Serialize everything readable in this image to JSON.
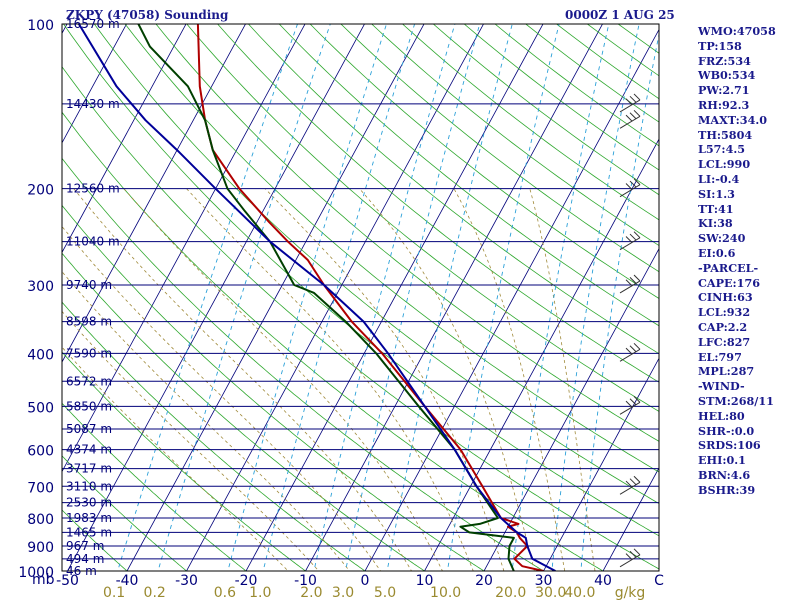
{
  "title_left": "ZKPY (47058) Sounding",
  "title_right": "0000Z  1 AUG 25",
  "stats": [
    "WMO:47058",
    "TP:158",
    "FRZ:534",
    "WB0:534",
    "PW:2.71",
    "RH:92.3",
    "MAXT:34.0",
    "TH:5804",
    "L57:4.5",
    "LCL:990",
    "LI:-0.4",
    "SI:1.3",
    "TT:41",
    "KI:38",
    "SW:240",
    "EI:0.6",
    "-PARCEL-",
    "CAPE:176",
    "CINH:63",
    "LCL:932",
    "CAP:2.2",
    "LFC:827",
    "EL:797",
    "MPL:287",
    "-WIND-",
    "STM:268/11",
    "HEL:80",
    "SHR-:0.0",
    "SRDS:106",
    "EHI:0.1",
    "BRN:4.6",
    "BSHR:39"
  ],
  "chart_data": {
    "type": "line",
    "diagram": "skew-T log-P",
    "y_axis": {
      "label": "mb",
      "scale": "log",
      "range": [
        1000,
        100
      ],
      "ticks": [
        "100",
        "200",
        "300",
        "400",
        "500",
        "600",
        "700",
        "800",
        "900",
        "1000"
      ]
    },
    "x_axis": {
      "label": "C",
      "range": [
        -50,
        50
      ],
      "ticks": [
        "-50",
        "-40",
        "-30",
        "-20",
        "-10",
        "0",
        "10",
        "20",
        "30",
        "40"
      ]
    },
    "mixing_ratio_axis": {
      "label": "g/kg",
      "ticks": [
        "0.1",
        "0.2",
        "0.6",
        "1.0",
        "2.0",
        "3.0",
        "5.0",
        "10.0",
        "20.0",
        "30.0",
        "40.0"
      ]
    },
    "height_labels": [
      "16570 m",
      "14430 m",
      "12560 m",
      "11040 m",
      "9740 m",
      "8598 m",
      "7590 m",
      "6572 m",
      "5850 m",
      "5087 m",
      "4374 m",
      "3717 m",
      "3110 m",
      "2530 m",
      "1983 m",
      "1465 m",
      "967 m",
      "494 m",
      "46 m"
    ],
    "series": [
      {
        "name": "temperature",
        "color": "#b00000",
        "points": [
          [
            1000,
            30
          ],
          [
            980,
            26
          ],
          [
            950,
            24
          ],
          [
            900,
            25
          ],
          [
            870,
            23
          ],
          [
            850,
            22
          ],
          [
            830,
            20
          ],
          [
            820,
            21.5
          ],
          [
            800,
            18
          ],
          [
            700,
            12
          ],
          [
            600,
            5
          ],
          [
            500,
            -5
          ],
          [
            400,
            -17
          ],
          [
            350,
            -25
          ],
          [
            300,
            -33
          ],
          [
            270,
            -38
          ],
          [
            250,
            -43
          ],
          [
            230,
            -48
          ],
          [
            200,
            -56
          ],
          [
            170,
            -64
          ],
          [
            150,
            -68
          ],
          [
            130,
            -72
          ],
          [
            100,
            -78
          ]
        ]
      },
      {
        "name": "dewpoint",
        "color": "#004000",
        "points": [
          [
            1000,
            25
          ],
          [
            950,
            23
          ],
          [
            900,
            22
          ],
          [
            870,
            22
          ],
          [
            850,
            14
          ],
          [
            830,
            12
          ],
          [
            820,
            15
          ],
          [
            800,
            17.5
          ],
          [
            700,
            11
          ],
          [
            600,
            4
          ],
          [
            500,
            -6
          ],
          [
            400,
            -18
          ],
          [
            350,
            -26
          ],
          [
            310,
            -34
          ],
          [
            300,
            -38
          ],
          [
            250,
            -46
          ],
          [
            220,
            -53
          ],
          [
            200,
            -58
          ],
          [
            170,
            -64
          ],
          [
            150,
            -68
          ],
          [
            130,
            -74
          ],
          [
            110,
            -84
          ],
          [
            100,
            -88
          ]
        ]
      },
      {
        "name": "parcel",
        "color": "#000099",
        "points": [
          [
            1000,
            32
          ],
          [
            950,
            27
          ],
          [
            900,
            25
          ],
          [
            870,
            24
          ],
          [
            850,
            22
          ],
          [
            800,
            18
          ],
          [
            700,
            11
          ],
          [
            600,
            4
          ],
          [
            500,
            -5
          ],
          [
            400,
            -16
          ],
          [
            350,
            -23
          ],
          [
            300,
            -33
          ],
          [
            250,
            -46
          ],
          [
            200,
            -60
          ],
          [
            170,
            -70
          ],
          [
            150,
            -78
          ],
          [
            130,
            -86
          ],
          [
            100,
            -98
          ]
        ]
      }
    ],
    "wind_barbs": [
      "140",
      "150",
      "200",
      "250",
      "300",
      "400",
      "500",
      "700",
      "950"
    ]
  }
}
